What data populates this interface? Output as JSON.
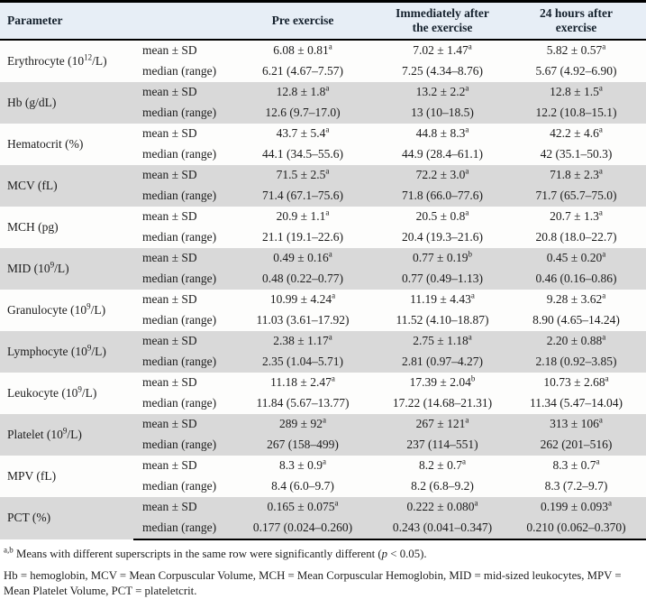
{
  "table": {
    "headers": {
      "parameter": "Parameter",
      "stat": "",
      "pre": "Pre exercise",
      "immediately": "Immediately after the exercise",
      "after24": "24 hours after exercise"
    },
    "stat_labels": {
      "mean": "mean ± SD",
      "median": "median (range)"
    },
    "rows": [
      {
        "parameter": {
          "base": "Erythrocyte (10",
          "sup": "12",
          "tail": "/L)"
        },
        "mean": [
          {
            "v": "6.08 ± 0.81",
            "s": "a"
          },
          {
            "v": "7.02 ± 1.47",
            "s": "a"
          },
          {
            "v": "5.82 ± 0.57",
            "s": "a"
          }
        ],
        "median": [
          "6.21 (4.67–7.57)",
          "7.25 (4.34–8.76)",
          "5.67 (4.92–6.90)"
        ]
      },
      {
        "parameter": {
          "base": "Hb (g/dL)",
          "sup": "",
          "tail": ""
        },
        "mean": [
          {
            "v": "12.8 ± 1.8",
            "s": "a"
          },
          {
            "v": "13.2 ± 2.2",
            "s": "a"
          },
          {
            "v": "12.8 ± 1.5",
            "s": "a"
          }
        ],
        "median": [
          "12.6 (9.7–17.0)",
          "13 (10–18.5)",
          "12.2 (10.8–15.1)"
        ]
      },
      {
        "parameter": {
          "base": "Hematocrit (%)",
          "sup": "",
          "tail": ""
        },
        "mean": [
          {
            "v": "43.7 ± 5.4",
            "s": "a"
          },
          {
            "v": "44.8 ± 8.3",
            "s": "a"
          },
          {
            "v": "42.2 ± 4.6",
            "s": "a"
          }
        ],
        "median": [
          "44.1 (34.5–55.6)",
          "44.9 (28.4–61.1)",
          "42 (35.1–50.3)"
        ]
      },
      {
        "parameter": {
          "base": "MCV (fL)",
          "sup": "",
          "tail": ""
        },
        "mean": [
          {
            "v": "71.5 ± 2.5",
            "s": "a"
          },
          {
            "v": "72.2 ± 3.0",
            "s": "a"
          },
          {
            "v": "71.8 ± 2.3",
            "s": "a"
          }
        ],
        "median": [
          "71.4 (67.1–75.6)",
          "71.8 (66.0–77.6)",
          "71.7 (65.7–75.0)"
        ]
      },
      {
        "parameter": {
          "base": "MCH (pg)",
          "sup": "",
          "tail": ""
        },
        "mean": [
          {
            "v": "20.9 ± 1.1",
            "s": "a"
          },
          {
            "v": "20.5 ± 0.8",
            "s": "a"
          },
          {
            "v": "20.7 ± 1.3",
            "s": "a"
          }
        ],
        "median": [
          "21.1 (19.1–22.6)",
          "20.4 (19.3–21.6)",
          "20.8 (18.0–22.7)"
        ]
      },
      {
        "parameter": {
          "base": "MID (10",
          "sup": "9",
          "tail": "/L)"
        },
        "mean": [
          {
            "v": "0.49 ± 0.16",
            "s": "a"
          },
          {
            "v": "0.77 ± 0.19",
            "s": "b"
          },
          {
            "v": "0.45 ± 0.20",
            "s": "a"
          }
        ],
        "median": [
          "0.48 (0.22–0.77)",
          "0.77 (0.49–1.13)",
          "0.46 (0.16–0.86)"
        ]
      },
      {
        "parameter": {
          "base": "Granulocyte (10",
          "sup": "9",
          "tail": "/L)"
        },
        "mean": [
          {
            "v": "10.99 ± 4.24",
            "s": "a"
          },
          {
            "v": "11.19 ± 4.43",
            "s": "a"
          },
          {
            "v": "9.28 ± 3.62",
            "s": "a"
          }
        ],
        "median": [
          "11.03 (3.61–17.92)",
          "11.52 (4.10–18.87)",
          "8.90 (4.65–14.24)"
        ]
      },
      {
        "parameter": {
          "base": "Lymphocyte (10",
          "sup": "9",
          "tail": "/L)"
        },
        "mean": [
          {
            "v": "2.38 ± 1.17",
            "s": "a"
          },
          {
            "v": "2.75 ± 1.18",
            "s": "a"
          },
          {
            "v": "2.20 ± 0.88",
            "s": "a"
          }
        ],
        "median": [
          "2.35 (1.04–5.71)",
          "2.81 (0.97–4.27)",
          "2.18 (0.92–3.85)"
        ]
      },
      {
        "parameter": {
          "base": "Leukocyte (10",
          "sup": "9",
          "tail": "/L)"
        },
        "mean": [
          {
            "v": "11.18 ± 2.47",
            "s": "a"
          },
          {
            "v": "17.39 ± 2.04",
            "s": "b"
          },
          {
            "v": "10.73 ± 2.68",
            "s": "a"
          }
        ],
        "median": [
          "11.84 (5.67–13.77)",
          "17.22 (14.68–21.31)",
          "11.34 (5.47–14.04)"
        ]
      },
      {
        "parameter": {
          "base": "Platelet (10",
          "sup": "9",
          "tail": "/L)"
        },
        "mean": [
          {
            "v": "289 ± 92",
            "s": "a"
          },
          {
            "v": "267 ± 121",
            "s": "a"
          },
          {
            "v": "313 ± 106",
            "s": "a"
          }
        ],
        "median": [
          "267 (158–499)",
          "237 (114–551)",
          "262 (201–516)"
        ]
      },
      {
        "parameter": {
          "base": "MPV (fL)",
          "sup": "",
          "tail": ""
        },
        "mean": [
          {
            "v": "8.3 ± 0.9",
            "s": "a"
          },
          {
            "v": "8.2 ± 0.7",
            "s": "a"
          },
          {
            "v": "8.3 ± 0.7",
            "s": "a"
          }
        ],
        "median": [
          "8.4 (6.0–9.7)",
          "8.2 (6.8–9.2)",
          "8.3 (7.2–9.7)"
        ]
      },
      {
        "parameter": {
          "base": "PCT (%)",
          "sup": "",
          "tail": ""
        },
        "mean": [
          {
            "v": "0.165 ± 0.075",
            "s": "a"
          },
          {
            "v": "0.222 ± 0.080",
            "s": "a"
          },
          {
            "v": "0.199 ± 0.093",
            "s": "a"
          }
        ],
        "median": [
          "0.177 (0.024–0.260)",
          "0.243 (0.041–0.347)",
          "0.210 (0.062–0.370)"
        ]
      }
    ]
  },
  "footnotes": {
    "sig_sup": "a,b",
    "sig_before_p": " Means with different superscripts in the same row were significantly different (",
    "sig_p": "p",
    "sig_after_p": " < 0.05).",
    "abbreviations": "Hb = hemoglobin, MCV = Mean Corpuscular Volume, MCH = Mean Corpuscular Hemoglobin, MID = mid-sized leukocytes, MPV = Mean Platelet Volume, PCT = plateletcrit."
  },
  "colors": {
    "header_bg": "#e7eef6",
    "row_shaded_bg": "#d9d9d9",
    "row_plain_bg": "#fdfdfc",
    "rule": "#000000"
  }
}
